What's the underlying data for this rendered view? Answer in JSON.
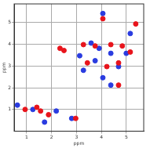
{
  "chart_data": {
    "type": "scatter",
    "x_label": "ppm",
    "y_label": "ppm",
    "xlim": [
      0.5,
      5.7
    ],
    "xticks": [
      1,
      2,
      3,
      4,
      5
    ],
    "ylim": [
      0,
      5.85
    ],
    "yticks": [
      1,
      2,
      3,
      4,
      5
    ],
    "grid": true,
    "marker": "circle",
    "series": [
      {
        "color": "#e8141c",
        "values": [
          [
            5.38,
            4.93
          ],
          [
            4.06,
            5.17
          ],
          [
            2.34,
            3.81
          ],
          [
            2.5,
            3.71
          ],
          [
            3.28,
            3.98
          ],
          [
            3.75,
            3.92
          ],
          [
            4.38,
            3.98
          ],
          [
            4.84,
            3.92
          ],
          [
            5.16,
            3.64
          ],
          [
            3.44,
            3.14
          ],
          [
            4.22,
            2.97
          ],
          [
            4.69,
            3.14
          ],
          [
            4.69,
            2.12
          ],
          [
            1.41,
            1.1
          ],
          [
            1.56,
            0.93
          ],
          [
            0.94,
            1.0
          ],
          [
            2.97,
            0.59
          ],
          [
            1.88,
            0.76
          ]
        ]
      },
      {
        "color": "#2a3ce0",
        "values": [
          [
            4.06,
            5.41
          ],
          [
            5.16,
            4.49
          ],
          [
            3.59,
            4.05
          ],
          [
            3.91,
            3.81
          ],
          [
            4.38,
            3.58
          ],
          [
            5.0,
            3.58
          ],
          [
            4.69,
            2.97
          ],
          [
            3.75,
            3.24
          ],
          [
            3.28,
            2.8
          ],
          [
            4.06,
            2.46
          ],
          [
            4.38,
            2.12
          ],
          [
            1.72,
            0.42
          ],
          [
            2.81,
            0.59
          ],
          [
            1.25,
            1.0
          ],
          [
            0.63,
            1.2
          ],
          [
            3.13,
            3.47
          ],
          [
            2.19,
            0.93
          ]
        ]
      }
    ]
  }
}
